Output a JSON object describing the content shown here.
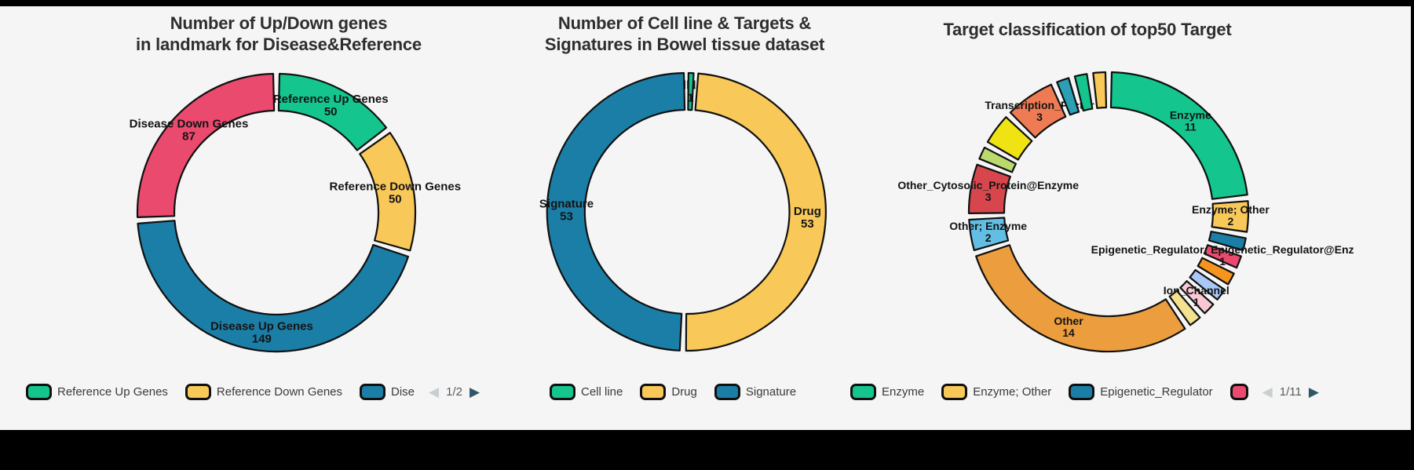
{
  "page": {
    "background": "#f5f5f6",
    "frame_color": "#000000"
  },
  "chart_data": [
    {
      "type": "pie",
      "subtype": "donut",
      "title_lines": [
        "Number of Up/Down genes",
        "in landmark for Disease&Reference"
      ],
      "legend_position": "bottom",
      "segments": [
        {
          "label": "Reference Up Genes",
          "value": 50,
          "color": "#14c68e"
        },
        {
          "label": "Reference Down Genes",
          "value": 50,
          "color": "#f8c859"
        },
        {
          "label": "Disease Up Genes",
          "value": 149,
          "color": "#1b7ea6"
        },
        {
          "label": "Disease Down Genes",
          "value": 87,
          "color": "#ea4a6e"
        }
      ],
      "legend": {
        "items": [
          {
            "label": "Reference Up Genes",
            "color": "#14c68e"
          },
          {
            "label": "Reference Down Genes",
            "color": "#f8c859"
          },
          {
            "label": "Dise",
            "color": "#1b7ea6"
          }
        ],
        "pager": {
          "prev_icon": "◀",
          "text": "1/2",
          "next_icon": "▶"
        }
      }
    },
    {
      "type": "pie",
      "subtype": "donut",
      "title_lines": [
        "Number of Cell line & Targets &",
        "Signatures in Bowel tissue dataset"
      ],
      "legend_position": "bottom",
      "segments": [
        {
          "label": "Cell line",
          "value": 1,
          "color": "#14c68e"
        },
        {
          "label": "Drug",
          "value": 53,
          "color": "#f8c859"
        },
        {
          "label": "Signature",
          "value": 53,
          "color": "#1b7ea6"
        }
      ],
      "legend": {
        "items": [
          {
            "label": "Cell line",
            "color": "#14c68e"
          },
          {
            "label": "Drug",
            "color": "#f8c859"
          },
          {
            "label": "Signature",
            "color": "#1b7ea6"
          }
        ],
        "pager": null
      }
    },
    {
      "type": "pie",
      "subtype": "donut",
      "title_lines": [
        "Target classification of top50 Target"
      ],
      "legend_position": "bottom",
      "segments": [
        {
          "label": "Enzyme",
          "value": 11,
          "color": "#14c68e"
        },
        {
          "label": "Enzyme; Other",
          "value": 2,
          "color": "#f8c859"
        },
        {
          "label": "",
          "value": 1,
          "color": "#1b7ea6"
        },
        {
          "label": "Epigenetic_Regulator; Epigenetic_Regulator@Enz",
          "value": 1,
          "color": "#ea4a6e"
        },
        {
          "label": "",
          "value": 1,
          "color": "#f7941e"
        },
        {
          "label": "",
          "value": 1,
          "color": "#aac8f7"
        },
        {
          "label": "Ion_Channel",
          "value": 1,
          "color": "#f9c9d3"
        },
        {
          "label": "",
          "value": 1,
          "color": "#f3e18f"
        },
        {
          "label": "Other",
          "value": 14,
          "color": "#ec9d3d"
        },
        {
          "label": "Other; Enzyme",
          "value": 2,
          "color": "#62bfe3"
        },
        {
          "label": "Other_Cytosolic_Protein@Enzyme",
          "value": 3,
          "color": "#d7464d"
        },
        {
          "label": "",
          "value": 1,
          "color": "#bbda6e"
        },
        {
          "label": "",
          "value": 2,
          "color": "#f0e314"
        },
        {
          "label": "Transcription_Factor",
          "value": 3,
          "color": "#ee7b54"
        },
        {
          "label": "",
          "value": 1,
          "color": "#2b9fb3"
        },
        {
          "label": "",
          "value": 1,
          "color": "#14c68e"
        },
        {
          "label": "",
          "value": 1,
          "color": "#f8c859"
        }
      ],
      "legend": {
        "items": [
          {
            "label": "Enzyme",
            "color": "#14c68e"
          },
          {
            "label": "Enzyme; Other",
            "color": "#f8c859"
          },
          {
            "label": "Epigenetic_Regulator",
            "color": "#1b7ea6"
          },
          {
            "label": "",
            "color": "#ea4a6e"
          }
        ],
        "pager": {
          "prev_icon": "◀",
          "text": "1/11",
          "next_icon": "▶"
        }
      }
    }
  ]
}
